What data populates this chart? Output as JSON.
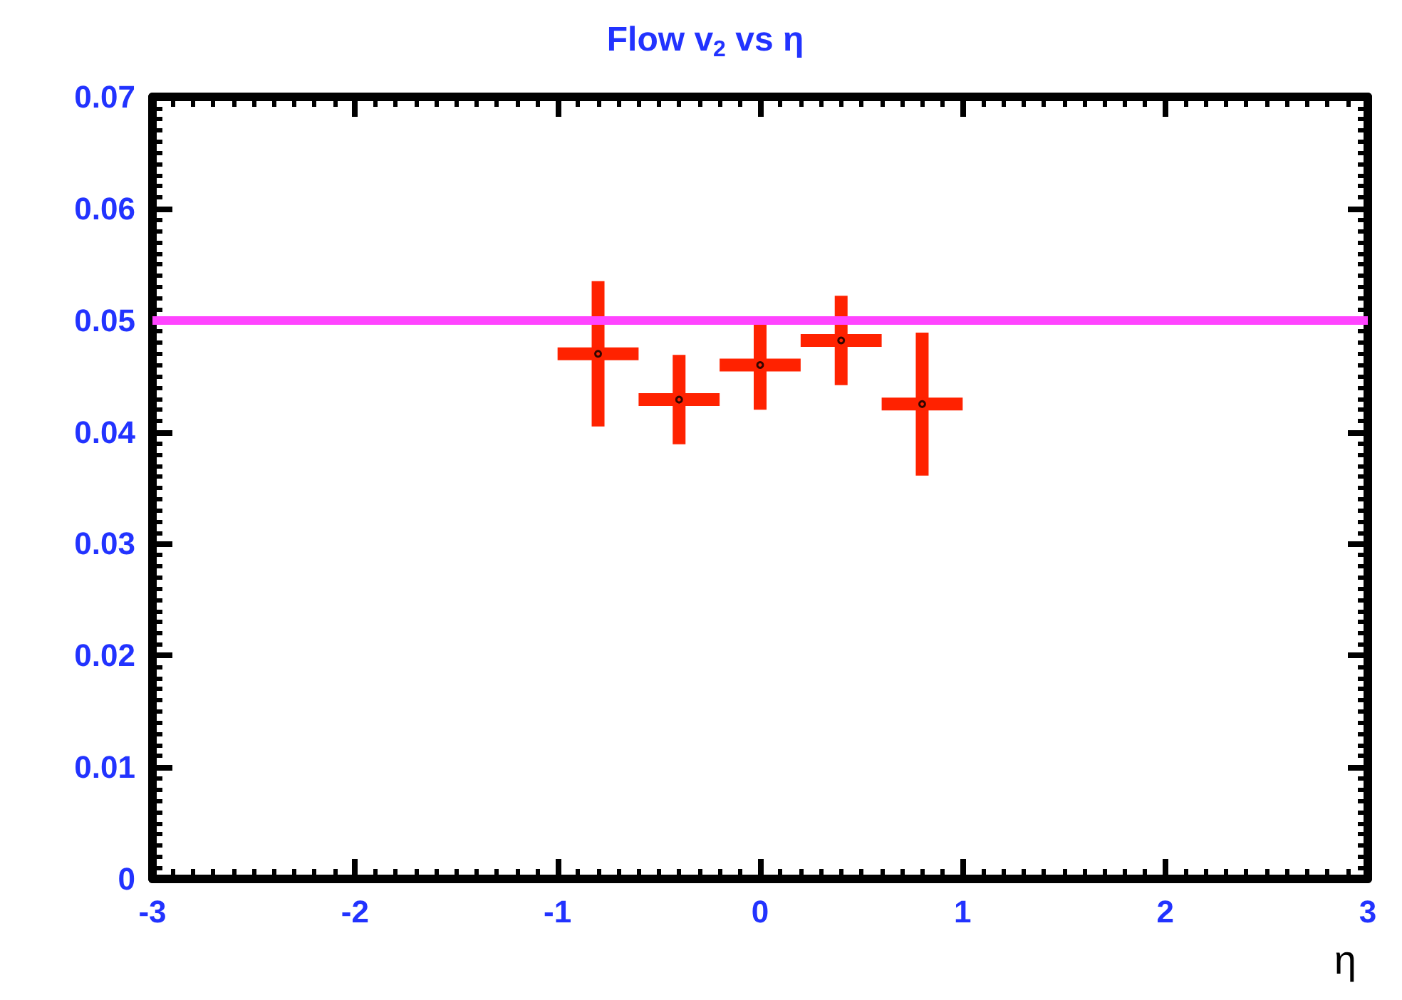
{
  "chart_data": {
    "type": "scatter",
    "title": "Flow v$_{2}$ vs η",
    "xlabel": "η",
    "x": [
      -0.8,
      -0.4,
      0,
      0.4,
      0.8
    ],
    "series": [
      {
        "color": "#ff2200",
        "values": [
          0.047,
          0.0429,
          0.046,
          0.0482,
          0.0425
        ],
        "errors": [
          0.0065,
          0.004,
          0.004,
          0.004,
          0.0064
        ],
        "xerrors": [
          0.2,
          0.2,
          0.2,
          0.2,
          0.2
        ]
      }
    ],
    "xlim": [
      -3,
      3
    ],
    "xticks": [
      -3,
      -2,
      -1,
      0,
      1,
      2,
      3
    ],
    "ylim": [
      0,
      0.07
    ],
    "yticks": [
      0,
      0.01,
      0.02,
      0.03,
      0.04,
      0.05,
      0.06,
      0.07
    ],
    "ref_lines": [
      {
        "axis": "y",
        "value": 0.05,
        "color": "#ff44ff"
      }
    ],
    "grid": false,
    "marker": "circle"
  }
}
